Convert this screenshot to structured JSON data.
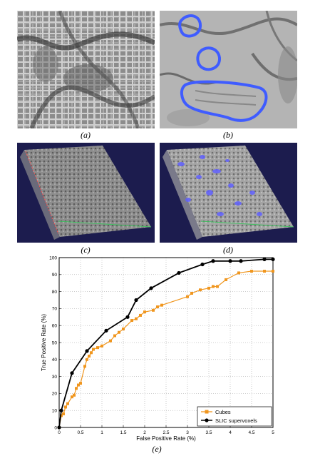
{
  "figure": {
    "panels": [
      {
        "id": "a",
        "label": "(a)"
      },
      {
        "id": "b",
        "label": "(b)"
      },
      {
        "id": "c",
        "label": "(c)"
      },
      {
        "id": "d",
        "label": "(d)"
      },
      {
        "id": "e",
        "label": "(e)"
      }
    ]
  },
  "colors": {
    "cubes": "#f0961e",
    "slic": "#000000",
    "contour": "#3f5cff",
    "volume_bg": "#1c1c4e"
  },
  "chart_data": {
    "type": "line",
    "title": "",
    "xlabel": "False Positive Rate (%)",
    "ylabel": "True Positive Rate (%)",
    "xlim": [
      0,
      5
    ],
    "ylim": [
      0,
      100
    ],
    "xticks": [
      0,
      0.5,
      1,
      1.5,
      2,
      2.5,
      3,
      3.5,
      4,
      4.5,
      5
    ],
    "yticks": [
      0,
      10,
      20,
      30,
      40,
      50,
      60,
      70,
      80,
      90,
      100
    ],
    "grid": true,
    "legend_position": "bottom-right",
    "series": [
      {
        "name": "Cubes",
        "marker": "square",
        "points": [
          [
            0,
            0
          ],
          [
            0.05,
            7
          ],
          [
            0.1,
            8
          ],
          [
            0.15,
            12
          ],
          [
            0.2,
            14
          ],
          [
            0.3,
            18
          ],
          [
            0.35,
            19
          ],
          [
            0.4,
            23
          ],
          [
            0.45,
            25
          ],
          [
            0.5,
            26
          ],
          [
            0.6,
            36
          ],
          [
            0.65,
            40
          ],
          [
            0.7,
            42
          ],
          [
            0.75,
            44
          ],
          [
            0.8,
            46
          ],
          [
            0.9,
            47
          ],
          [
            1.0,
            48
          ],
          [
            1.2,
            51
          ],
          [
            1.3,
            54
          ],
          [
            1.4,
            56
          ],
          [
            1.5,
            58
          ],
          [
            1.7,
            63
          ],
          [
            1.8,
            64
          ],
          [
            1.9,
            66
          ],
          [
            2.0,
            68
          ],
          [
            2.2,
            69
          ],
          [
            2.3,
            71
          ],
          [
            2.4,
            72
          ],
          [
            3.0,
            77
          ],
          [
            3.1,
            79
          ],
          [
            3.3,
            81
          ],
          [
            3.5,
            82
          ],
          [
            3.6,
            83
          ],
          [
            3.7,
            83
          ],
          [
            3.9,
            87
          ],
          [
            4.2,
            91
          ],
          [
            4.5,
            92
          ],
          [
            4.8,
            92
          ],
          [
            5.0,
            92
          ]
        ]
      },
      {
        "name": "SLIC supervoxels",
        "marker": "circle",
        "points": [
          [
            0,
            0
          ],
          [
            0.05,
            10
          ],
          [
            0.3,
            32
          ],
          [
            0.65,
            45
          ],
          [
            1.1,
            57
          ],
          [
            1.6,
            65
          ],
          [
            1.8,
            75
          ],
          [
            2.15,
            82
          ],
          [
            2.8,
            91
          ],
          [
            3.35,
            96
          ],
          [
            3.6,
            98
          ],
          [
            4.0,
            98
          ],
          [
            4.25,
            98
          ],
          [
            4.8,
            99
          ],
          [
            5.0,
            99
          ]
        ]
      }
    ]
  }
}
